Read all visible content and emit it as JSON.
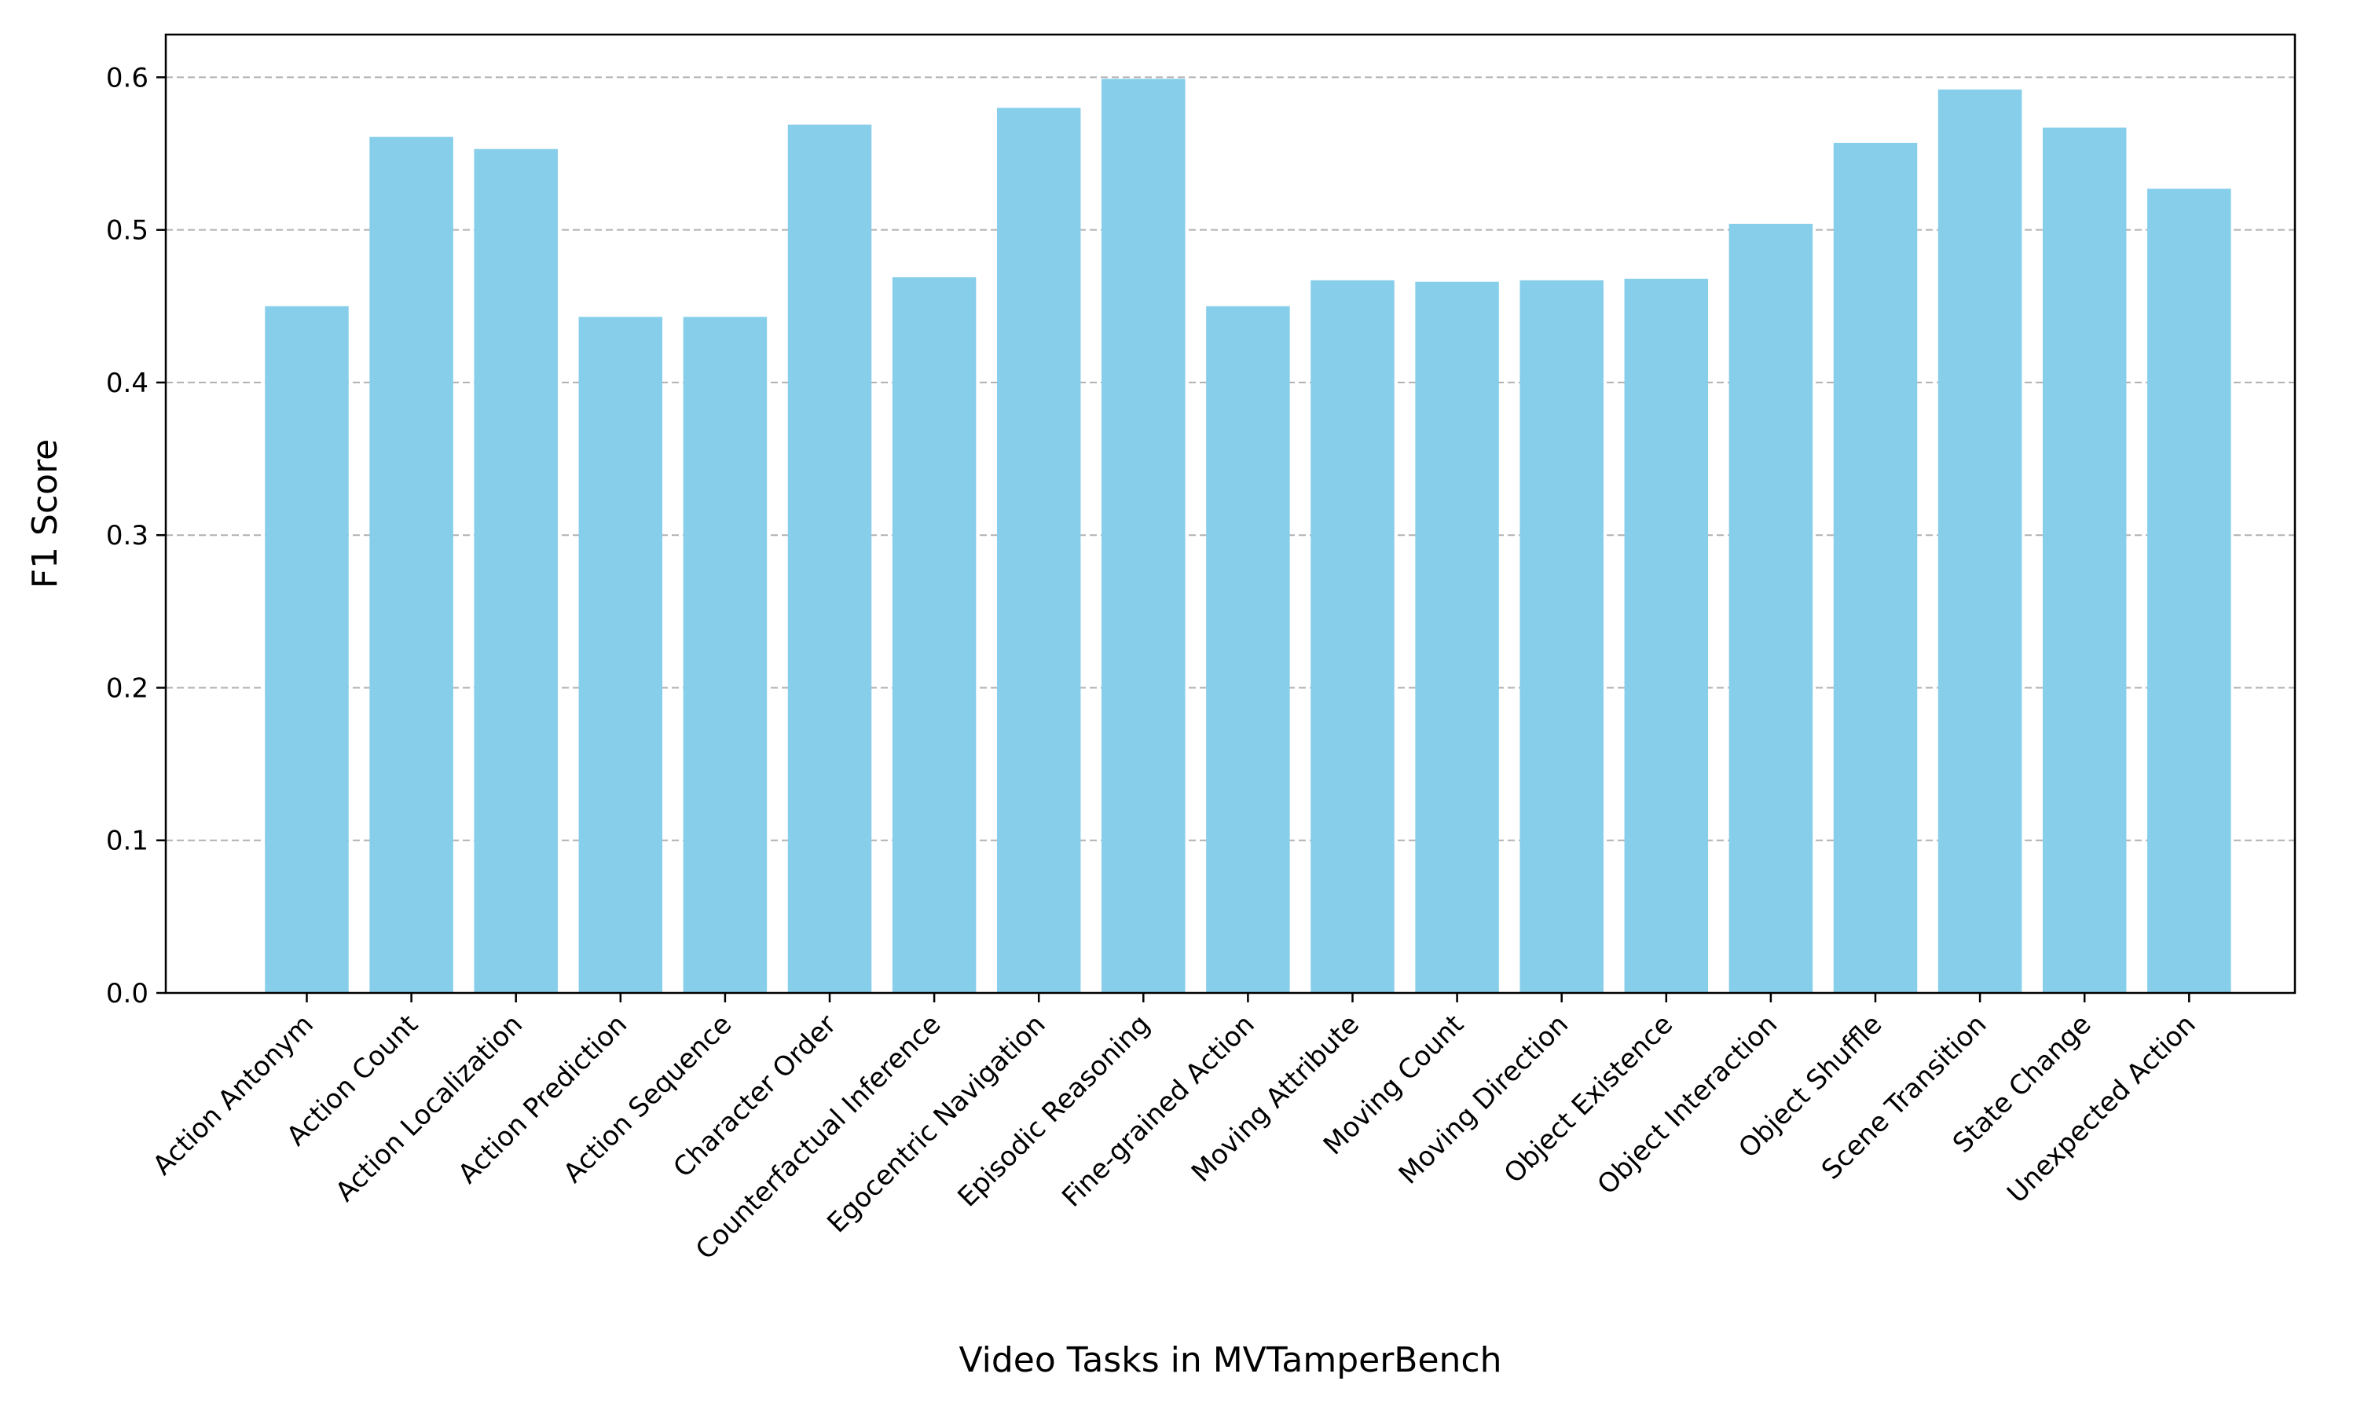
{
  "chart_data": {
    "type": "bar",
    "xlabel": "Video Tasks in MVTamperBench",
    "ylabel": "F1 Score",
    "ylim": [
      0,
      0.628
    ],
    "yticks": [
      0.0,
      0.1,
      0.2,
      0.3,
      0.4,
      0.5,
      0.6
    ],
    "ytick_labels": [
      "0.0",
      "0.1",
      "0.2",
      "0.3",
      "0.4",
      "0.5",
      "0.6"
    ],
    "grid": "y-dashed",
    "bar_color": "#87ceeb",
    "grid_color": "#b0b0b0",
    "categories": [
      "Action Antonym",
      "Action Count",
      "Action Localization",
      "Action Prediction",
      "Action Sequence",
      "Character Order",
      "Counterfactual Inference",
      "Egocentric Navigation",
      "Episodic Reasoning",
      "Fine-grained Action",
      "Moving Attribute",
      "Moving Count",
      "Moving Direction",
      "Object Existence",
      "Object Interaction",
      "Object Shuffle",
      "Scene Transition",
      "State Change",
      "Unexpected Action"
    ],
    "values": [
      0.45,
      0.561,
      0.553,
      0.443,
      0.443,
      0.569,
      0.469,
      0.58,
      0.599,
      0.45,
      0.467,
      0.466,
      0.467,
      0.468,
      0.504,
      0.557,
      0.592,
      0.567,
      0.527
    ]
  }
}
